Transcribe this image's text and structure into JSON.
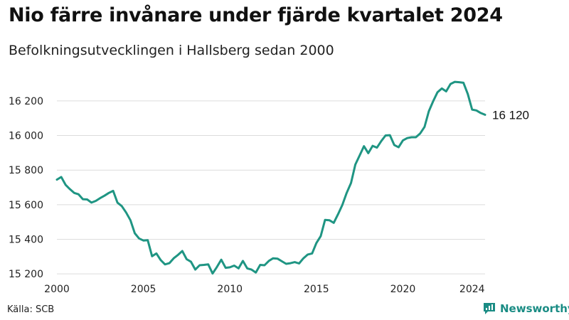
{
  "title": "Nio färre invånare under fjärde kvartalet 2024",
  "subtitle": "Befolkningsutvecklingen i Hallsberg sedan 2000",
  "source": "Källa: SCB",
  "brand": {
    "name": "Newsworthy",
    "icon": "newsworthy-logo-icon",
    "color": "#1a8c84"
  },
  "chart_data": {
    "type": "line",
    "title": "Nio färre invånare under fjärde kvartalet 2024",
    "subtitle": "Befolkningsutvecklingen i Hallsberg sedan 2000",
    "xlabel": "",
    "ylabel": "",
    "xlim": [
      2000,
      2024.75
    ],
    "ylim": [
      15180,
      16290
    ],
    "grid": true,
    "line_color": "#1f9583",
    "x_ticks": [
      {
        "value": 2000,
        "label": "2000"
      },
      {
        "value": 2005,
        "label": "2005"
      },
      {
        "value": 2010,
        "label": "2010"
      },
      {
        "value": 2015,
        "label": "2015"
      },
      {
        "value": 2020,
        "label": "2020"
      },
      {
        "value": 2024,
        "label": "2024"
      }
    ],
    "y_ticks": [
      {
        "value": 15200,
        "label": "15 200"
      },
      {
        "value": 15400,
        "label": "15 400"
      },
      {
        "value": 15600,
        "label": "15 600"
      },
      {
        "value": 15800,
        "label": "15 800"
      },
      {
        "value": 16000,
        "label": "16 000"
      },
      {
        "value": 16200,
        "label": "16 200"
      }
    ],
    "end_label": "16 120",
    "series": [
      {
        "x": [
          2000.0,
          2000.25,
          2000.5,
          2000.75,
          2001.0,
          2001.25,
          2001.5,
          2001.75,
          2002.0,
          2002.25,
          2002.5,
          2002.75,
          2003.0,
          2003.25,
          2003.5,
          2003.75,
          2004.0,
          2004.25,
          2004.5,
          2004.75,
          2005.0,
          2005.25,
          2005.5,
          2005.75,
          2006.0,
          2006.25,
          2006.5,
          2006.75,
          2007.0,
          2007.25,
          2007.5,
          2007.75,
          2008.0,
          2008.25,
          2008.5,
          2008.75,
          2009.0,
          2009.25,
          2009.5,
          2009.75,
          2010.0,
          2010.25,
          2010.5,
          2010.75,
          2011.0,
          2011.25,
          2011.5,
          2011.75,
          2012.0,
          2012.25,
          2012.5,
          2012.75,
          2013.0,
          2013.25,
          2013.5,
          2013.75,
          2014.0,
          2014.25,
          2014.5,
          2014.75,
          2015.0,
          2015.25,
          2015.5,
          2015.75,
          2016.0,
          2016.25,
          2016.5,
          2016.75,
          2017.0,
          2017.25,
          2017.5,
          2017.75,
          2018.0,
          2018.25,
          2018.5,
          2018.75,
          2019.0,
          2019.25,
          2019.5,
          2019.75,
          2020.0,
          2020.25,
          2020.5,
          2020.75,
          2021.0,
          2021.25,
          2021.5,
          2021.75,
          2022.0,
          2022.25,
          2022.5,
          2022.75,
          2023.0,
          2023.25,
          2023.5,
          2023.75,
          2024.0,
          2024.25,
          2024.5,
          2024.75
        ],
        "values": [
          15745,
          15760,
          15715,
          15690,
          15668,
          15660,
          15632,
          15630,
          15612,
          15622,
          15638,
          15652,
          15668,
          15680,
          15612,
          15592,
          15555,
          15510,
          15435,
          15405,
          15393,
          15395,
          15302,
          15318,
          15280,
          15255,
          15262,
          15290,
          15310,
          15332,
          15285,
          15270,
          15225,
          15250,
          15252,
          15255,
          15202,
          15240,
          15282,
          15235,
          15238,
          15248,
          15232,
          15275,
          15232,
          15225,
          15208,
          15252,
          15250,
          15275,
          15290,
          15288,
          15273,
          15258,
          15262,
          15268,
          15260,
          15290,
          15312,
          15318,
          15378,
          15418,
          15512,
          15510,
          15495,
          15545,
          15598,
          15668,
          15725,
          15832,
          15885,
          15938,
          15898,
          15940,
          15930,
          15968,
          16000,
          16002,
          15945,
          15932,
          15972,
          15985,
          15990,
          15990,
          16012,
          16050,
          16140,
          16198,
          16250,
          16272,
          16255,
          16298,
          16310,
          16308,
          16305,
          16240,
          16150,
          16145,
          16130,
          16120
        ]
      }
    ]
  }
}
